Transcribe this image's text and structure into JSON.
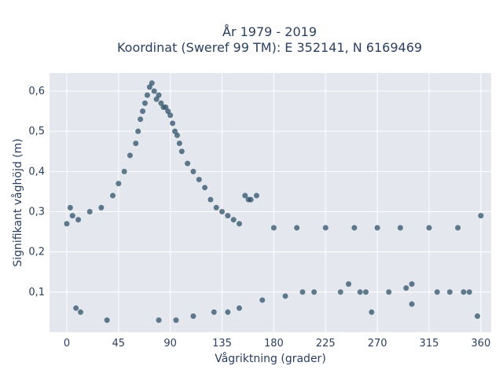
{
  "chart_data": {
    "type": "scatter",
    "title": "År 1979 - 2019",
    "subtitle": "Koordinat (Sweref 99 TM): E 352141, N 6169469",
    "xlabel": "Vågriktning (grader)",
    "ylabel": "Signifikant våghöjd (m)",
    "xlim": [
      -15,
      369
    ],
    "ylim": [
      0,
      0.645
    ],
    "xticks": [
      0,
      45,
      90,
      135,
      180,
      225,
      270,
      315,
      360
    ],
    "xtick_labels": [
      "0",
      "45",
      "90",
      "135",
      "180",
      "225",
      "270",
      "315",
      "360"
    ],
    "yticks": [
      0.1,
      0.2,
      0.3,
      0.4,
      0.5,
      0.6
    ],
    "ytick_labels": [
      "0,1",
      "0,2",
      "0,3",
      "0,4",
      "0,5",
      "0,6"
    ],
    "grid": true,
    "legend": "none",
    "colors": {
      "marker": "#2f5168",
      "plot_bg": "#e5e7ef",
      "grid": "#ffffff",
      "text": "#2a3f5f"
    },
    "series": [
      {
        "x": [
          0,
          5,
          10,
          20,
          30,
          40,
          45,
          50,
          55,
          60,
          62,
          64,
          66,
          68,
          70,
          72,
          74,
          76,
          78,
          80,
          82,
          84,
          86,
          88,
          90,
          92,
          94,
          96,
          98,
          100,
          105,
          110,
          115,
          120,
          125,
          130,
          135,
          140,
          145,
          150,
          155,
          160,
          180,
          200,
          225,
          250,
          270,
          290,
          315,
          340,
          360,
          158,
          165,
          12,
          8,
          3,
          35,
          80,
          95,
          110,
          128,
          140,
          150,
          170,
          190,
          205,
          215,
          238,
          255,
          265,
          280,
          295,
          300,
          322,
          333,
          345,
          350,
          357,
          300,
          260,
          245
        ],
        "y": [
          0.27,
          0.29,
          0.28,
          0.3,
          0.31,
          0.34,
          0.37,
          0.4,
          0.44,
          0.47,
          0.5,
          0.53,
          0.55,
          0.57,
          0.59,
          0.61,
          0.62,
          0.6,
          0.58,
          0.59,
          0.57,
          0.56,
          0.56,
          0.55,
          0.54,
          0.52,
          0.5,
          0.49,
          0.47,
          0.45,
          0.42,
          0.4,
          0.38,
          0.36,
          0.33,
          0.31,
          0.3,
          0.29,
          0.28,
          0.27,
          0.34,
          0.33,
          0.26,
          0.26,
          0.26,
          0.26,
          0.26,
          0.26,
          0.26,
          0.26,
          0.29,
          0.33,
          0.34,
          0.05,
          0.06,
          0.31,
          0.03,
          0.03,
          0.03,
          0.04,
          0.05,
          0.05,
          0.06,
          0.08,
          0.09,
          0.1,
          0.1,
          0.1,
          0.1,
          0.05,
          0.1,
          0.11,
          0.12,
          0.1,
          0.1,
          0.1,
          0.1,
          0.04,
          0.07,
          0.1,
          0.12
        ]
      }
    ]
  }
}
